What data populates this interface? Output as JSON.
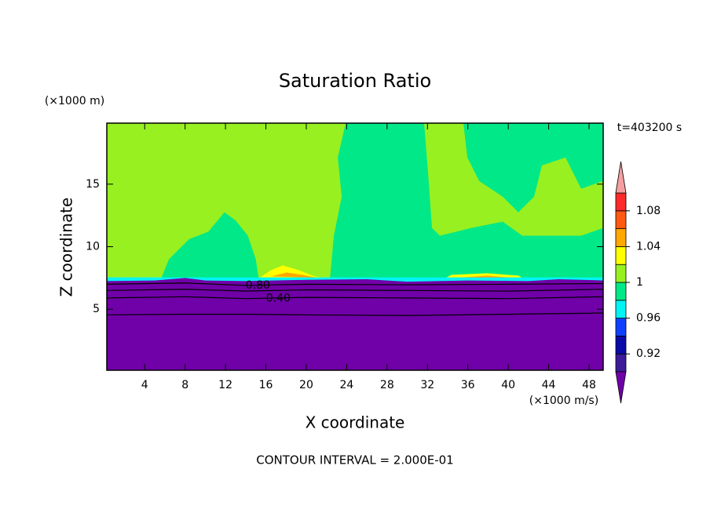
{
  "chart_data": {
    "type": "filled-contour",
    "title": "Saturation Ratio",
    "x_label": "X coordinate",
    "y_label": "Z coordinate",
    "x_unit": "(×1000 m/s)",
    "y_unit": "(×1000 m)",
    "time_label": "t=403200 s",
    "footer": "CONTOUR INTERVAL = 2.000E-01",
    "xlim": [
      0.25,
      49.4
    ],
    "ylim": [
      0.125,
      19.875
    ],
    "xticks": [
      4,
      8,
      12,
      16,
      20,
      24,
      28,
      32,
      36,
      40,
      44,
      48
    ],
    "yticks": [
      5,
      10,
      15
    ],
    "colorbar": {
      "bounds": [
        0.9,
        0.92,
        0.94,
        0.96,
        0.98,
        1,
        1.02,
        1.04,
        1.06,
        1.08,
        1.1
      ],
      "colors": [
        "#3c1a98",
        "#0a0aa8",
        "#1040ff",
        "#00f4f4",
        "#00e888",
        "#98f020",
        "#ffff00",
        "#ffa800",
        "#ff5a10",
        "#ff2a2a"
      ],
      "under_color": "#7000a8",
      "over_color": "#f4a0a0",
      "ticks": [
        0.92,
        0.96,
        1,
        1.04,
        1.08
      ]
    },
    "regions": [
      {
        "value": 1.01,
        "x": [
          0.25,
          49.4,
          49.4,
          0.25
        ],
        "z": [
          7.55,
          7.55,
          19.875,
          19.875
        ]
      },
      {
        "value": 0.99,
        "x": [
          5.6,
          6.4,
          8.4,
          10.3,
          11.9,
          13.0,
          14.2,
          15.0,
          15.3
        ],
        "z": [
          7.4,
          9.0,
          10.6,
          11.2,
          12.75,
          12.1,
          10.9,
          9.0,
          7.4
        ]
      },
      {
        "value": 0.99,
        "x": [
          22.35,
          22.73,
          23.51,
          23.12,
          23.9,
          31.67,
          32.06,
          32.45,
          33.23,
          33.62
        ],
        "z": [
          7.44,
          10.88,
          14.0,
          17.13,
          19.875,
          19.875,
          15.88,
          11.5,
          10.88,
          7.44
        ]
      },
      {
        "value": 0.99,
        "x": [
          33.23,
          33.23,
          36.34,
          39.45,
          41.39,
          44.11,
          47.22,
          49.4,
          49.4
        ],
        "z": [
          7.44,
          10.88,
          11.5,
          12.0,
          10.88,
          10.88,
          10.88,
          11.5,
          7.44
        ]
      },
      {
        "value": 0.99,
        "x": [
          35.56,
          49.4,
          49.4,
          47.22,
          45.67,
          43.33,
          42.56,
          41.0,
          39.45,
          37.12,
          35.95
        ],
        "z": [
          19.875,
          19.875,
          15.25,
          14.63,
          17.13,
          16.5,
          14.0,
          12.75,
          14.0,
          15.25,
          17.13
        ]
      },
      {
        "value": 1.03,
        "x": [
          15.35,
          16.51,
          17.68,
          19.24,
          20.79,
          22.35
        ],
        "z": [
          7.5,
          8.13,
          8.5,
          8.13,
          7.63,
          7.44
        ]
      },
      {
        "value": 1.05,
        "x": [
          16.51,
          18.07,
          19.63,
          21.18
        ],
        "z": [
          7.63,
          7.94,
          7.75,
          7.5
        ]
      },
      {
        "value": 1.03,
        "x": [
          33.62,
          34.39,
          37.89,
          41.0,
          41.62
        ],
        "z": [
          7.44,
          7.75,
          7.88,
          7.69,
          7.44
        ]
      },
      {
        "value": 1.05,
        "x": [
          34.78,
          37.89,
          40.61
        ],
        "z": [
          7.5,
          7.69,
          7.5
        ]
      },
      {
        "value": 0.97,
        "x": [
          0.25,
          49.4,
          49.4,
          0.25
        ],
        "z": [
          7.2,
          7.2,
          7.55,
          7.55
        ]
      },
      {
        "value": 0.5,
        "x": [
          0.25,
          49.4,
          49.4,
          45,
          42,
          36,
          30,
          26,
          20,
          14,
          10,
          8,
          5,
          0.25
        ],
        "z": [
          0.125,
          0.125,
          7.3,
          7.4,
          7.25,
          7.3,
          7.2,
          7.4,
          7.35,
          7.25,
          7.3,
          7.5,
          7.3,
          7.25
        ]
      }
    ],
    "contours": [
      {
        "level": 0.8,
        "label": "0.80",
        "x": [
          0.25,
          8,
          14,
          20,
          30,
          40,
          49.4
        ],
        "z": [
          7.0,
          7.1,
          6.9,
          7.0,
          6.95,
          7.0,
          7.05
        ]
      },
      {
        "level": 0.6,
        "x": [
          0.25,
          8,
          14,
          20,
          30,
          40,
          49.4
        ],
        "z": [
          6.5,
          6.6,
          6.45,
          6.55,
          6.5,
          6.45,
          6.6
        ]
      },
      {
        "level": 0.4,
        "label": "0.40",
        "x": [
          0.25,
          8,
          14,
          20,
          30,
          40,
          49.4
        ],
        "z": [
          5.9,
          6.0,
          5.85,
          5.95,
          5.9,
          5.85,
          6.0
        ]
      },
      {
        "level": 0.2,
        "x": [
          0.25,
          8,
          14,
          20,
          30,
          40,
          49.4
        ],
        "z": [
          4.55,
          4.6,
          4.6,
          4.55,
          4.5,
          4.6,
          4.7
        ]
      }
    ]
  }
}
